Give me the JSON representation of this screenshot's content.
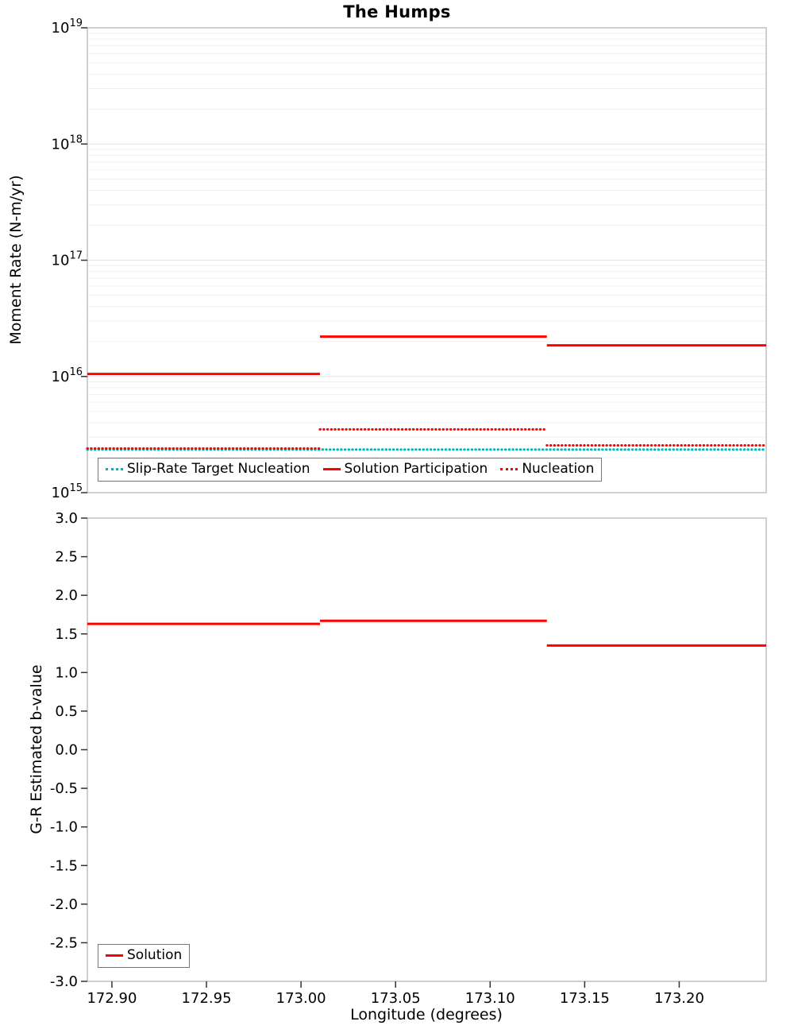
{
  "figure": {
    "title": "The Humps"
  },
  "colors": {
    "red": "#ff0000",
    "teal": "#00b8b8",
    "grid_minor": "#f1f1f1",
    "grid_major": "#e3e3e3",
    "axis": "#b0b0b0",
    "tick": "#333333",
    "legend_border": "#777777",
    "text": "#000000"
  },
  "chart_data": [
    {
      "type": "line",
      "name": "moment-rate-plot",
      "title": "The Humps",
      "ylabel": "Moment Rate (N-m/yr)",
      "yscale": "log",
      "ylim": [
        1000000000000000.0,
        1e+19
      ],
      "xlim": [
        172.887,
        173.246
      ],
      "ytick_exponents": [
        15,
        16,
        17,
        18,
        19
      ],
      "grid": "log-horizontal-minor",
      "legend_position": "bottom-left-inside",
      "series": [
        {
          "name": "Slip-Rate Target Nucleation",
          "color": "#00b8b8",
          "style": "dotted",
          "segments": [
            {
              "x": [
                172.887,
                173.246
              ],
              "y": 2350000000000000.0
            }
          ]
        },
        {
          "name": "Solution Participation",
          "color": "#ff0000",
          "style": "solid",
          "segments": [
            {
              "x": [
                172.887,
                173.01
              ],
              "y": 1.05e+16
            },
            {
              "x": [
                173.01,
                173.13
              ],
              "y": 2.2e+16
            },
            {
              "x": [
                173.13,
                173.246
              ],
              "y": 1.85e+16
            }
          ]
        },
        {
          "name": "Nucleation",
          "color": "#ff0000",
          "style": "dotted",
          "segments": [
            {
              "x": [
                172.887,
                173.01
              ],
              "y": 2400000000000000.0
            },
            {
              "x": [
                173.01,
                173.13
              ],
              "y": 3500000000000000.0
            },
            {
              "x": [
                173.13,
                173.246
              ],
              "y": 2550000000000000.0
            }
          ]
        }
      ]
    },
    {
      "type": "line",
      "name": "b-value-plot",
      "xlabel": "Longitude (degrees)",
      "ylabel": "G-R Estimated b-value",
      "yscale": "linear",
      "ylim": [
        -3.0,
        3.0
      ],
      "xlim": [
        172.887,
        173.246
      ],
      "ytick_values": [
        3.0,
        2.5,
        2.0,
        1.5,
        1.0,
        0.5,
        0.0,
        -0.5,
        -1.0,
        -1.5,
        -2.0,
        -2.5,
        -3.0
      ],
      "ytick_labels": [
        "3.0",
        "2.5",
        "2.0",
        "1.5",
        "1.0",
        "0.5",
        "0.0",
        "-0.5",
        "-1.0",
        "-1.5",
        "-2.0",
        "-2.5",
        "-3.0"
      ],
      "xtick_values": [
        172.9,
        172.95,
        173.0,
        173.05,
        173.1,
        173.15,
        173.2
      ],
      "xtick_labels": [
        "172.90",
        "172.95",
        "173.00",
        "173.05",
        "173.10",
        "173.15",
        "173.20"
      ],
      "legend_position": "bottom-left-inside",
      "series": [
        {
          "name": "Solution",
          "color": "#ff0000",
          "style": "solid",
          "segments": [
            {
              "x": [
                172.887,
                173.01
              ],
              "y": 1.63
            },
            {
              "x": [
                173.01,
                173.13
              ],
              "y": 1.67
            },
            {
              "x": [
                173.13,
                173.246
              ],
              "y": 1.35
            }
          ]
        }
      ]
    }
  ]
}
